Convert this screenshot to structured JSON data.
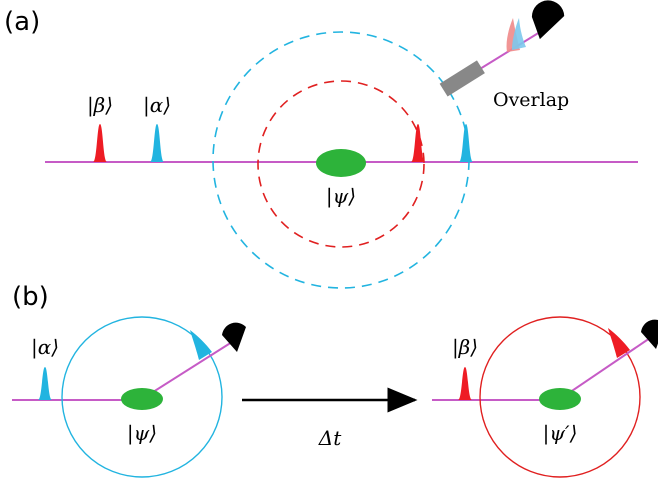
{
  "panel_a": {
    "label": "(a)",
    "beta": "|β⟩",
    "alpha": "|α⟩",
    "psi": "|ψ⟩",
    "detector": "Overlap"
  },
  "panel_b": {
    "label": "(b)",
    "alpha": "|α⟩",
    "psi": "|ψ⟩",
    "arrow": "Δt",
    "beta": "|β⟩",
    "psi_prime": "|ψ′⟩"
  }
}
